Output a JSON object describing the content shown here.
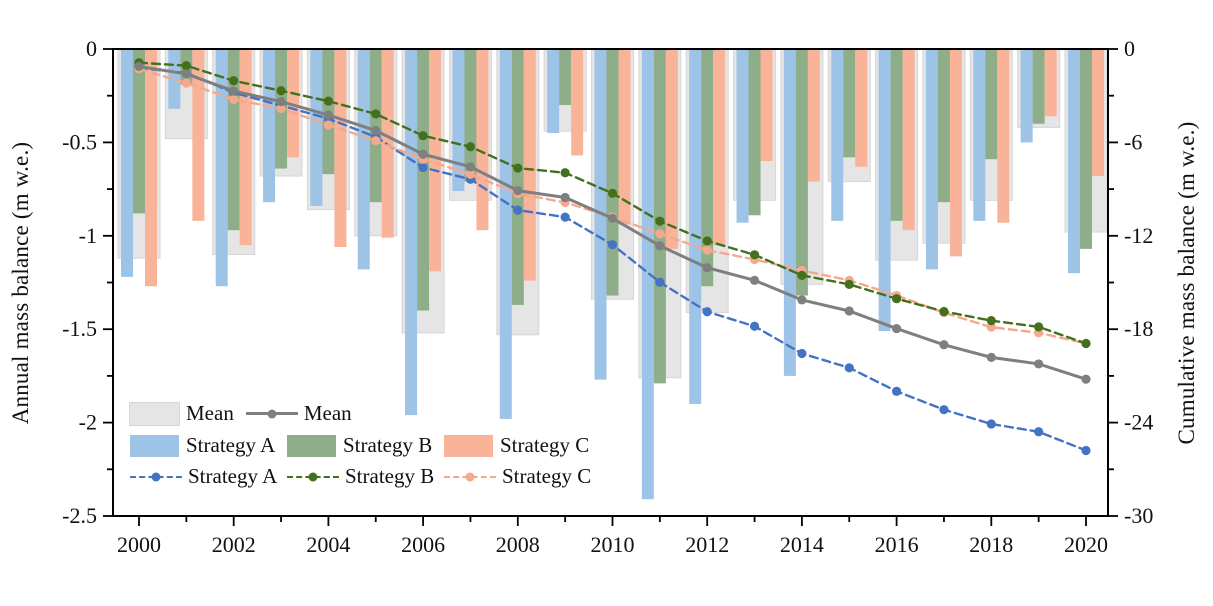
{
  "chart_data": {
    "type": "bar+line",
    "title": "",
    "grid": false,
    "legend_position": "lower-left-inside",
    "x": [
      2000,
      2001,
      2002,
      2003,
      2004,
      2005,
      2006,
      2007,
      2008,
      2009,
      2010,
      2011,
      2012,
      2013,
      2014,
      2015,
      2016,
      2017,
      2018,
      2019,
      2020
    ],
    "x_tick_labels": [
      "2000",
      "2002",
      "2004",
      "2006",
      "2008",
      "2010",
      "2012",
      "2014",
      "2016",
      "2018",
      "2020"
    ],
    "x_major_ticks": [
      2000,
      2002,
      2004,
      2006,
      2008,
      2010,
      2012,
      2014,
      2016,
      2018,
      2020
    ],
    "x_minor_ticks": [
      2001,
      2003,
      2005,
      2007,
      2009,
      2011,
      2013,
      2015,
      2017,
      2019
    ],
    "left_axis": {
      "label": "Annual mass balance (m w.e.)",
      "range": [
        0,
        -2.5
      ],
      "major_ticks": [
        0,
        -0.5,
        -1,
        -1.5,
        -2,
        -2.5
      ],
      "tick_labels": [
        "0",
        "-0.5",
        "-1",
        "-1.5",
        "-2",
        "-2.5"
      ],
      "minor_ticks": [
        -0.25,
        -0.75,
        -1.25,
        -1.75,
        -2.25
      ]
    },
    "right_axis": {
      "label": "Cumulative mass balance (m w.e.)",
      "range": [
        0,
        -30
      ],
      "major_ticks": [
        0,
        -6,
        -12,
        -18,
        -24,
        -30
      ],
      "tick_labels": [
        "0",
        "-6",
        "-12",
        "-18",
        "-24",
        "-30"
      ],
      "minor_ticks": [
        -3,
        -9,
        -15,
        -21,
        -27
      ]
    },
    "colors": {
      "bar_mean": "#e5e5e5",
      "bar_mean_edge": "#d6d6d6",
      "bar_a": "#9dc3e6",
      "bar_b": "#8dae88",
      "bar_c": "#f9b399",
      "line_mean": "#7f7f7f",
      "line_a": "#4472c4",
      "line_b": "#44701e",
      "line_c": "#f5a98c",
      "axis": "#000000"
    },
    "bar_series": [
      {
        "name": "Mean",
        "axis": "left",
        "values": [
          -1.12,
          -0.48,
          -1.1,
          -0.68,
          -0.86,
          -1.0,
          -1.52,
          -0.81,
          -1.53,
          -0.44,
          -1.34,
          -1.76,
          -1.41,
          -0.81,
          -1.26,
          -0.71,
          -1.13,
          -1.04,
          -0.81,
          -0.42,
          -0.98
        ]
      },
      {
        "name": "Strategy A",
        "axis": "left",
        "values": [
          -1.22,
          -0.32,
          -1.27,
          -0.82,
          -0.84,
          -1.18,
          -1.96,
          -0.76,
          -1.98,
          -0.45,
          -1.77,
          -2.41,
          -1.9,
          -0.93,
          -1.75,
          -0.92,
          -1.51,
          -1.18,
          -0.92,
          -0.5,
          -1.2
        ]
      },
      {
        "name": "Strategy B",
        "axis": "left",
        "values": [
          -0.88,
          -0.19,
          -0.97,
          -0.64,
          -0.67,
          -0.82,
          -1.4,
          -0.71,
          -1.37,
          -0.3,
          -1.32,
          -1.79,
          -1.27,
          -0.89,
          -1.32,
          -0.58,
          -0.92,
          -0.82,
          -0.59,
          -0.4,
          -1.07
        ]
      },
      {
        "name": "Strategy C",
        "axis": "left",
        "values": [
          -1.27,
          -0.92,
          -1.05,
          -0.58,
          -1.06,
          -1.01,
          -1.19,
          -0.97,
          -1.24,
          -0.57,
          -0.94,
          -1.07,
          -1.05,
          -0.6,
          -0.71,
          -0.63,
          -0.97,
          -1.11,
          -0.93,
          -0.36,
          -0.68
        ]
      }
    ],
    "line_series": [
      {
        "name": "Strategy A",
        "axis": "right",
        "dash": true,
        "values": [
          -1.22,
          -1.54,
          -2.81,
          -3.63,
          -4.47,
          -5.65,
          -7.61,
          -8.37,
          -10.35,
          -10.8,
          -12.57,
          -14.98,
          -16.88,
          -17.81,
          -19.56,
          -20.48,
          -21.99,
          -23.17,
          -24.09,
          -24.59,
          -25.79
        ]
      },
      {
        "name": "Strategy C",
        "axis": "right",
        "dash": true,
        "values": [
          -1.27,
          -2.19,
          -3.24,
          -3.82,
          -4.88,
          -5.89,
          -7.08,
          -8.05,
          -9.29,
          -9.86,
          -10.8,
          -11.87,
          -12.92,
          -13.52,
          -14.23,
          -14.86,
          -15.83,
          -16.94,
          -17.87,
          -18.23,
          -18.91
        ]
      },
      {
        "name": "Strategy B",
        "axis": "right",
        "dash": true,
        "values": [
          -0.88,
          -1.07,
          -2.04,
          -2.68,
          -3.35,
          -4.17,
          -5.57,
          -6.28,
          -7.65,
          -7.95,
          -9.27,
          -11.06,
          -12.33,
          -13.22,
          -14.54,
          -15.12,
          -16.04,
          -16.86,
          -17.45,
          -17.85,
          -18.92
        ]
      },
      {
        "name": "Mean",
        "axis": "right",
        "dash": false,
        "values": [
          -1.12,
          -1.6,
          -2.7,
          -3.38,
          -4.24,
          -5.24,
          -6.76,
          -7.57,
          -9.1,
          -9.54,
          -10.88,
          -12.64,
          -14.05,
          -14.86,
          -16.12,
          -16.83,
          -17.96,
          -19.0,
          -19.81,
          -20.23,
          -21.21
        ]
      }
    ],
    "legend": {
      "row1": [
        {
          "kind": "bar",
          "label": "Mean",
          "colorKey": "bar_mean"
        },
        {
          "kind": "line",
          "label": "Mean",
          "colorKey": "line_mean",
          "dash": false
        }
      ],
      "row2": [
        {
          "kind": "bar",
          "label": "Strategy A",
          "colorKey": "bar_a"
        },
        {
          "kind": "bar",
          "label": "Strategy B",
          "colorKey": "bar_b"
        },
        {
          "kind": "bar",
          "label": "Strategy C",
          "colorKey": "bar_c"
        }
      ],
      "row3": [
        {
          "kind": "line",
          "label": "Strategy A",
          "colorKey": "line_a",
          "dash": true
        },
        {
          "kind": "line",
          "label": "Strategy B",
          "colorKey": "line_b",
          "dash": true
        },
        {
          "kind": "line",
          "label": "Strategy C",
          "colorKey": "line_c",
          "dash": true
        }
      ]
    }
  }
}
